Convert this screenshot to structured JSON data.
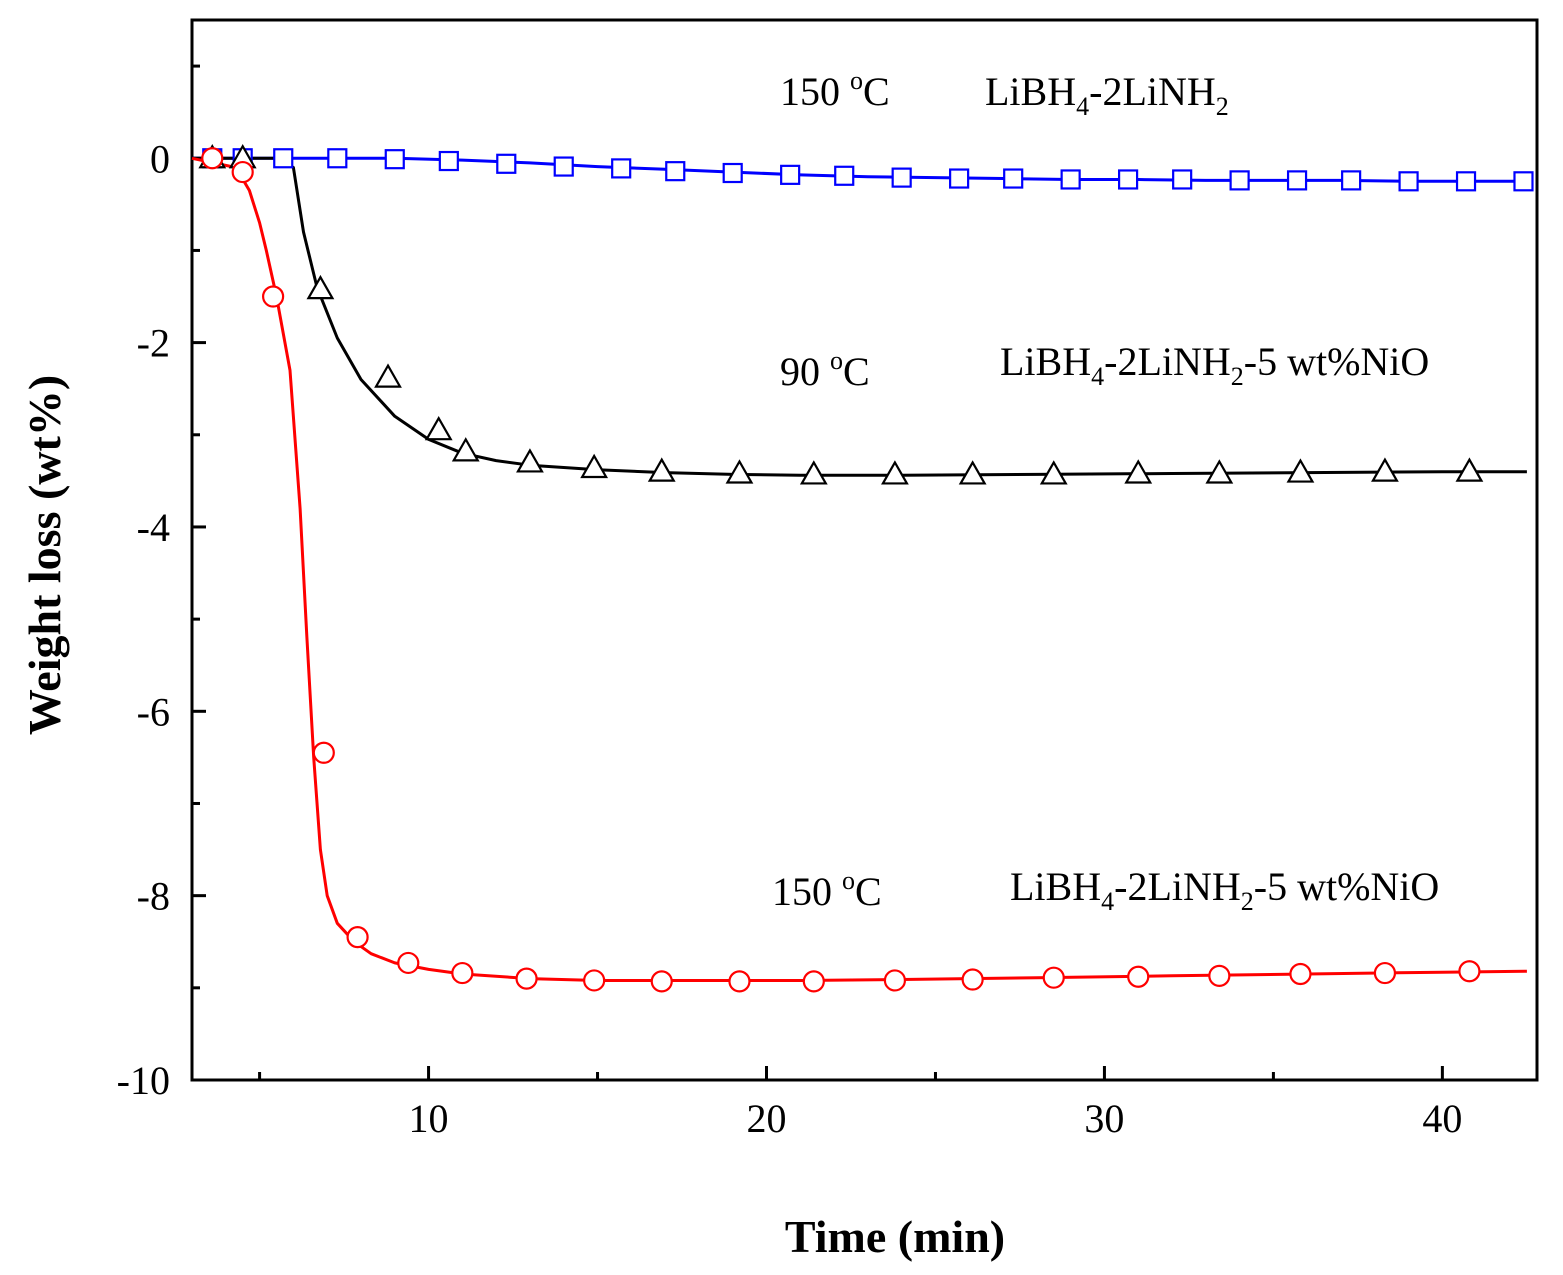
{
  "chart_data": {
    "type": "line",
    "title": "",
    "xlabel": "Time (min)",
    "ylabel": "Weight loss (wt%)",
    "xlim": [
      3,
      42.8
    ],
    "ylim": [
      -10,
      1.5
    ],
    "x_ticks": [
      10,
      20,
      30,
      40
    ],
    "y_ticks": [
      0,
      -2,
      -4,
      -6,
      -8,
      -10
    ],
    "x_tick_labels": [
      "10",
      "20",
      "30",
      "40"
    ],
    "y_tick_labels": [
      "0",
      "-2",
      "-4",
      "-6",
      "-8",
      "-10"
    ],
    "grid": false,
    "series": [
      {
        "name": "LiBH4-2LiNH2 150 °C",
        "color": "#0000ff",
        "marker": "square",
        "line_x": [
          3,
          5,
          7,
          9,
          11,
          13,
          15,
          17,
          19,
          21,
          23,
          25,
          27,
          29,
          31,
          33,
          35,
          37,
          39,
          41,
          42.5
        ],
        "line_y": [
          0,
          0,
          0,
          0,
          -0.02,
          -0.05,
          -0.09,
          -0.12,
          -0.15,
          -0.18,
          -0.2,
          -0.21,
          -0.22,
          -0.23,
          -0.23,
          -0.24,
          -0.24,
          -0.24,
          -0.25,
          -0.25,
          -0.25
        ],
        "marker_x": [
          3.6,
          4.5,
          5.7,
          7.3,
          9.0,
          10.6,
          12.3,
          14.0,
          15.7,
          17.3,
          19.0,
          20.7,
          22.3,
          24.0,
          25.7,
          27.3,
          29.0,
          30.7,
          32.3,
          34.0,
          35.7,
          37.3,
          39.0,
          40.7,
          42.4
        ],
        "marker_y": [
          0,
          0,
          0,
          0,
          -0.01,
          -0.03,
          -0.06,
          -0.09,
          -0.11,
          -0.14,
          -0.16,
          -0.18,
          -0.19,
          -0.21,
          -0.22,
          -0.22,
          -0.23,
          -0.23,
          -0.23,
          -0.24,
          -0.24,
          -0.24,
          -0.25,
          -0.25,
          -0.25
        ]
      },
      {
        "name": "LiBH4-2LiNH2-5 wt%NiO 90 °C",
        "color": "#000000",
        "marker": "triangle",
        "line_x": [
          3,
          5.5,
          6.0,
          6.3,
          6.7,
          7.3,
          8.0,
          9.0,
          10.0,
          11.0,
          12.0,
          13.0,
          15.0,
          17.0,
          19.0,
          21.0,
          24.0,
          28.0,
          32.0,
          36.0,
          40.0,
          42.5
        ],
        "line_y": [
          0,
          0,
          -0.1,
          -0.8,
          -1.4,
          -1.95,
          -2.4,
          -2.8,
          -3.05,
          -3.2,
          -3.28,
          -3.33,
          -3.38,
          -3.41,
          -3.43,
          -3.44,
          -3.44,
          -3.43,
          -3.42,
          -3.41,
          -3.4,
          -3.4
        ],
        "marker_x": [
          3.6,
          4.5,
          6.8,
          8.8,
          10.3,
          11.1,
          13.0,
          14.9,
          16.9,
          19.2,
          21.4,
          23.8,
          26.1,
          28.5,
          31.0,
          33.4,
          35.8,
          38.3,
          40.8
        ],
        "marker_y": [
          0,
          0,
          -1.42,
          -2.38,
          -2.95,
          -3.18,
          -3.3,
          -3.36,
          -3.4,
          -3.42,
          -3.43,
          -3.43,
          -3.43,
          -3.43,
          -3.42,
          -3.42,
          -3.41,
          -3.4,
          -3.4
        ]
      },
      {
        "name": "LiBH4-2LiNH2-5 wt%NiO 150 °C",
        "color": "#ff0000",
        "marker": "circle",
        "line_x": [
          3,
          4.3,
          4.7,
          5.0,
          5.2,
          5.5,
          5.9,
          6.2,
          6.4,
          6.6,
          6.8,
          7.0,
          7.3,
          7.8,
          8.3,
          9.0,
          10.0,
          11.0,
          13.0,
          15.0,
          17.0,
          19.0,
          21.0,
          24.0,
          28.0,
          32.0,
          36.0,
          40.0,
          42.5
        ],
        "line_y": [
          0,
          -0.1,
          -0.35,
          -0.7,
          -1.0,
          -1.5,
          -2.3,
          -3.8,
          -5.2,
          -6.5,
          -7.5,
          -8.0,
          -8.3,
          -8.5,
          -8.63,
          -8.73,
          -8.8,
          -8.85,
          -8.9,
          -8.92,
          -8.92,
          -8.92,
          -8.92,
          -8.91,
          -8.89,
          -8.87,
          -8.85,
          -8.83,
          -8.82
        ],
        "marker_x": [
          3.6,
          4.5,
          5.4,
          6.9,
          7.9,
          9.4,
          11.0,
          12.9,
          14.9,
          16.9,
          19.2,
          21.4,
          23.8,
          26.1,
          28.5,
          31.0,
          33.4,
          35.8,
          38.3,
          40.8
        ],
        "marker_y": [
          0,
          -0.15,
          -1.5,
          -6.45,
          -8.45,
          -8.73,
          -8.84,
          -8.9,
          -8.92,
          -8.93,
          -8.93,
          -8.93,
          -8.92,
          -8.91,
          -8.89,
          -8.88,
          -8.87,
          -8.85,
          -8.84,
          -8.82
        ]
      }
    ],
    "annotations": [
      {
        "id": "a1",
        "temp_value": "150 ",
        "temp_sup": "o",
        "temp_unit": "C",
        "comp": [
          "LiBH",
          "4",
          "-2LiNH",
          "2",
          ""
        ]
      },
      {
        "id": "a2",
        "temp_value": "90 ",
        "temp_sup": "o",
        "temp_unit": "C",
        "comp": [
          "LiBH",
          "4",
          "-2LiNH",
          "2",
          "-5 wt%NiO"
        ]
      },
      {
        "id": "a3",
        "temp_value": "150 ",
        "temp_sup": "o",
        "temp_unit": "C",
        "comp": [
          "LiBH",
          "4",
          "-2LiNH",
          "2",
          "-5 wt%NiO"
        ]
      }
    ]
  }
}
